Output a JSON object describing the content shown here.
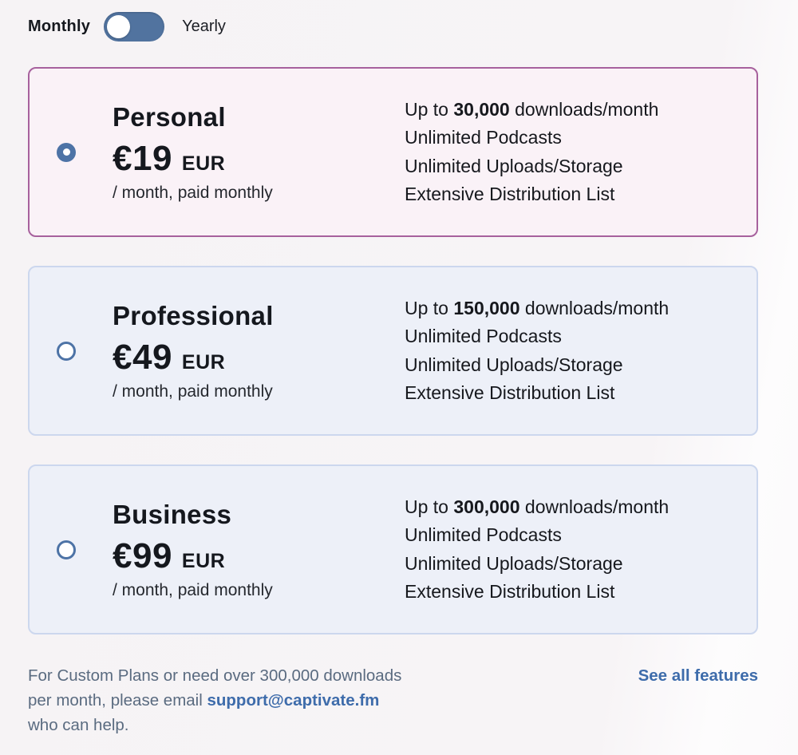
{
  "billing_toggle": {
    "monthly_label": "Monthly",
    "yearly_label": "Yearly",
    "selected": "monthly"
  },
  "plans": [
    {
      "name": "Personal",
      "price": "€19",
      "currency": "EUR",
      "billing_note": "/ month, paid monthly",
      "selected": true,
      "features": {
        "downloads_prefix": "Up to ",
        "downloads_value": "30,000",
        "downloads_suffix": " downloads/month",
        "line2": "Unlimited Podcasts",
        "line3": "Unlimited Uploads/Storage",
        "line4": "Extensive Distribution List"
      }
    },
    {
      "name": "Professional",
      "price": "€49",
      "currency": "EUR",
      "billing_note": "/ month, paid monthly",
      "selected": false,
      "features": {
        "downloads_prefix": "Up to ",
        "downloads_value": "150,000",
        "downloads_suffix": " downloads/month",
        "line2": "Unlimited Podcasts",
        "line3": "Unlimited Uploads/Storage",
        "line4": "Extensive Distribution List"
      }
    },
    {
      "name": "Business",
      "price": "€99",
      "currency": "EUR",
      "billing_note": "/ month, paid monthly",
      "selected": false,
      "features": {
        "downloads_prefix": "Up to ",
        "downloads_value": "300,000",
        "downloads_suffix": " downloads/month",
        "line2": "Unlimited Podcasts",
        "line3": "Unlimited Uploads/Storage",
        "line4": "Extensive Distribution List"
      }
    }
  ],
  "footer": {
    "line1": "For Custom Plans or need over 300,000 downloads",
    "line2_prefix": "per month, please email ",
    "email": "support@captivate.fm",
    "line3": "who can help.",
    "see_all_label": "See all features"
  },
  "colors": {
    "accent_blue": "#4d73a6",
    "link_blue": "#3e6cab",
    "selected_card_border": "#a7619d",
    "selected_card_bg": "#faf2f7",
    "default_card_border": "#ccd7ee",
    "default_card_bg": "#edf0f8"
  }
}
